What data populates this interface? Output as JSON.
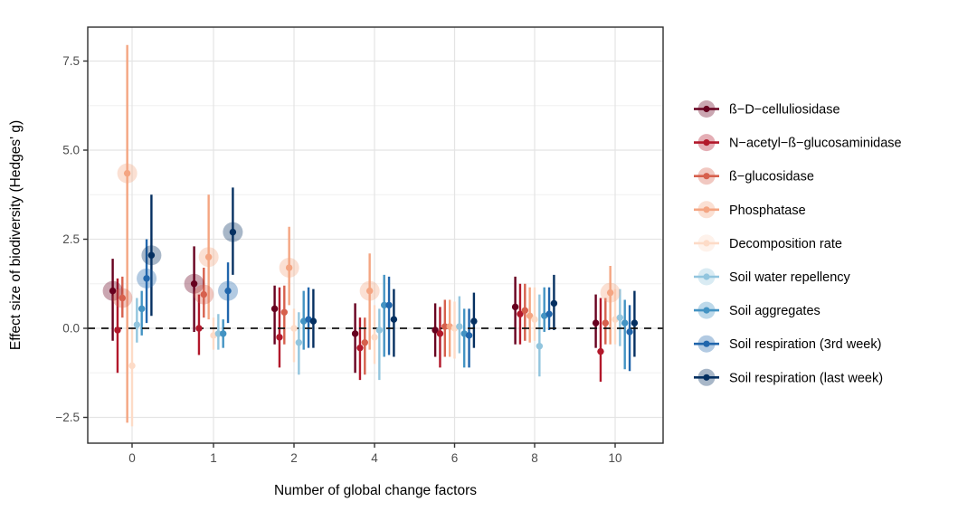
{
  "figure_title": "",
  "chart_data": {
    "type": "pointrange",
    "title": "",
    "xlabel": "Number of global change factors",
    "ylabel": "Effect size of biodiversity (Hedges' g)",
    "x_categories": [
      "0",
      "1",
      "2",
      "4",
      "6",
      "8",
      "10"
    ],
    "y_ticks": [
      {
        "label": "7.5",
        "value": 7.5
      },
      {
        "label": "5.0",
        "value": 5.0
      },
      {
        "label": "2.5",
        "value": 2.5
      },
      {
        "label": "0.0",
        "value": 0.0
      },
      {
        "label": "−2.5",
        "value": -2.5
      }
    ],
    "y_minor_ticks": [
      6.25,
      3.75,
      1.25,
      -1.25
    ],
    "ylim": [
      -3.25,
      8.45
    ],
    "reference_line": 0,
    "grid": true,
    "legend_position": "right",
    "style": {
      "panel_border_color": "#2e2e2e",
      "grid_major_color": "#e4e4e4",
      "grid_minor_color": "#f0f0f0",
      "reference_line_color": "#111111",
      "tick_color": "#333333",
      "halo_opacity": 0.35
    },
    "series": [
      {
        "name": "ß−D−celluliosidase",
        "color": "#67001f",
        "points": [
          [
            1.05,
            -0.35,
            1.95,
            true
          ],
          [
            1.25,
            -0.1,
            2.3,
            true
          ],
          [
            0.55,
            -0.45,
            1.2,
            false
          ],
          [
            -0.15,
            -1.25,
            0.7,
            false
          ],
          [
            -0.05,
            -0.8,
            0.7,
            false
          ],
          [
            0.6,
            -0.45,
            1.45,
            false
          ],
          [
            0.15,
            -0.55,
            0.95,
            false
          ]
        ]
      },
      {
        "name": "N−acetyl−ß−glucosaminidase",
        "color": "#b2182b",
        "points": [
          [
            -0.05,
            -1.25,
            1.4,
            false
          ],
          [
            0.0,
            -0.75,
            0.95,
            false
          ],
          [
            -0.25,
            -1.1,
            1.15,
            false
          ],
          [
            -0.55,
            -1.45,
            0.3,
            false
          ],
          [
            -0.15,
            -1.1,
            0.6,
            false
          ],
          [
            0.4,
            -0.45,
            1.25,
            false
          ],
          [
            -0.65,
            -1.5,
            0.85,
            false
          ]
        ]
      },
      {
        "name": "ß−glucosidase",
        "color": "#d6604d",
        "points": [
          [
            0.85,
            0.3,
            1.45,
            true
          ],
          [
            0.95,
            0.3,
            1.7,
            true
          ],
          [
            0.45,
            -0.45,
            1.2,
            false
          ],
          [
            -0.4,
            -1.3,
            0.3,
            false
          ],
          [
            0.05,
            -0.8,
            0.8,
            false
          ],
          [
            0.5,
            -0.35,
            1.25,
            false
          ],
          [
            0.15,
            -0.45,
            0.85,
            false
          ]
        ]
      },
      {
        "name": "Phosphatase",
        "color": "#f4a582",
        "points": [
          [
            4.35,
            -2.65,
            7.95,
            true
          ],
          [
            2.0,
            0.25,
            3.75,
            true
          ],
          [
            1.7,
            0.65,
            2.85,
            true
          ],
          [
            1.05,
            -0.6,
            2.1,
            true
          ],
          [
            0.05,
            -0.8,
            0.8,
            false
          ],
          [
            0.35,
            -0.4,
            1.15,
            false
          ],
          [
            1.0,
            -0.45,
            1.75,
            true
          ]
        ]
      },
      {
        "name": "Decomposition rate",
        "color": "#fddbc7",
        "points": [
          [
            -1.05,
            -2.75,
            0.0,
            false
          ],
          [
            -0.2,
            -0.6,
            0.3,
            false
          ],
          [
            0.0,
            -0.95,
            0.55,
            false
          ],
          [
            -0.25,
            -1.0,
            0.65,
            false
          ],
          [
            0.0,
            -0.85,
            0.75,
            false
          ],
          [
            0.25,
            -0.35,
            1.15,
            false
          ],
          [
            0.25,
            -0.45,
            1.1,
            false
          ]
        ]
      },
      {
        "name": "Soil water repellency",
        "color": "#92c5de",
        "points": [
          [
            0.1,
            -0.4,
            0.85,
            false
          ],
          [
            -0.15,
            -0.6,
            0.4,
            false
          ],
          [
            -0.4,
            -1.3,
            0.45,
            false
          ],
          [
            -0.05,
            -1.45,
            0.55,
            false
          ],
          [
            0.05,
            -0.7,
            0.9,
            false
          ],
          [
            -0.5,
            -1.35,
            0.95,
            false
          ],
          [
            0.3,
            -0.5,
            1.1,
            false
          ]
        ]
      },
      {
        "name": "Soil aggregates",
        "color": "#4393c3",
        "points": [
          [
            0.55,
            -0.2,
            1.05,
            false
          ],
          [
            -0.15,
            -0.55,
            0.25,
            false
          ],
          [
            0.2,
            -0.6,
            1.05,
            false
          ],
          [
            0.65,
            -0.8,
            1.5,
            false
          ],
          [
            -0.15,
            -1.1,
            0.55,
            false
          ],
          [
            0.35,
            -0.1,
            1.15,
            false
          ],
          [
            0.15,
            -1.15,
            0.8,
            false
          ]
        ]
      },
      {
        "name": "Soil respiration (3rd week)",
        "color": "#2166ac",
        "points": [
          [
            1.4,
            0.15,
            2.5,
            true
          ],
          [
            1.05,
            0.15,
            1.85,
            true
          ],
          [
            0.25,
            -0.55,
            1.15,
            false
          ],
          [
            0.65,
            -0.75,
            1.45,
            false
          ],
          [
            -0.2,
            -1.1,
            0.55,
            false
          ],
          [
            0.4,
            -0.05,
            1.15,
            false
          ],
          [
            -0.1,
            -1.2,
            0.65,
            false
          ]
        ]
      },
      {
        "name": "Soil respiration (last week)",
        "color": "#053061",
        "points": [
          [
            2.05,
            0.35,
            3.75,
            true
          ],
          [
            2.7,
            1.5,
            3.95,
            true
          ],
          [
            0.2,
            -0.55,
            1.1,
            false
          ],
          [
            0.25,
            -0.8,
            1.1,
            false
          ],
          [
            0.2,
            -0.55,
            1.0,
            false
          ],
          [
            0.7,
            -0.05,
            1.5,
            false
          ],
          [
            0.15,
            -0.8,
            1.05,
            false
          ]
        ]
      }
    ]
  }
}
